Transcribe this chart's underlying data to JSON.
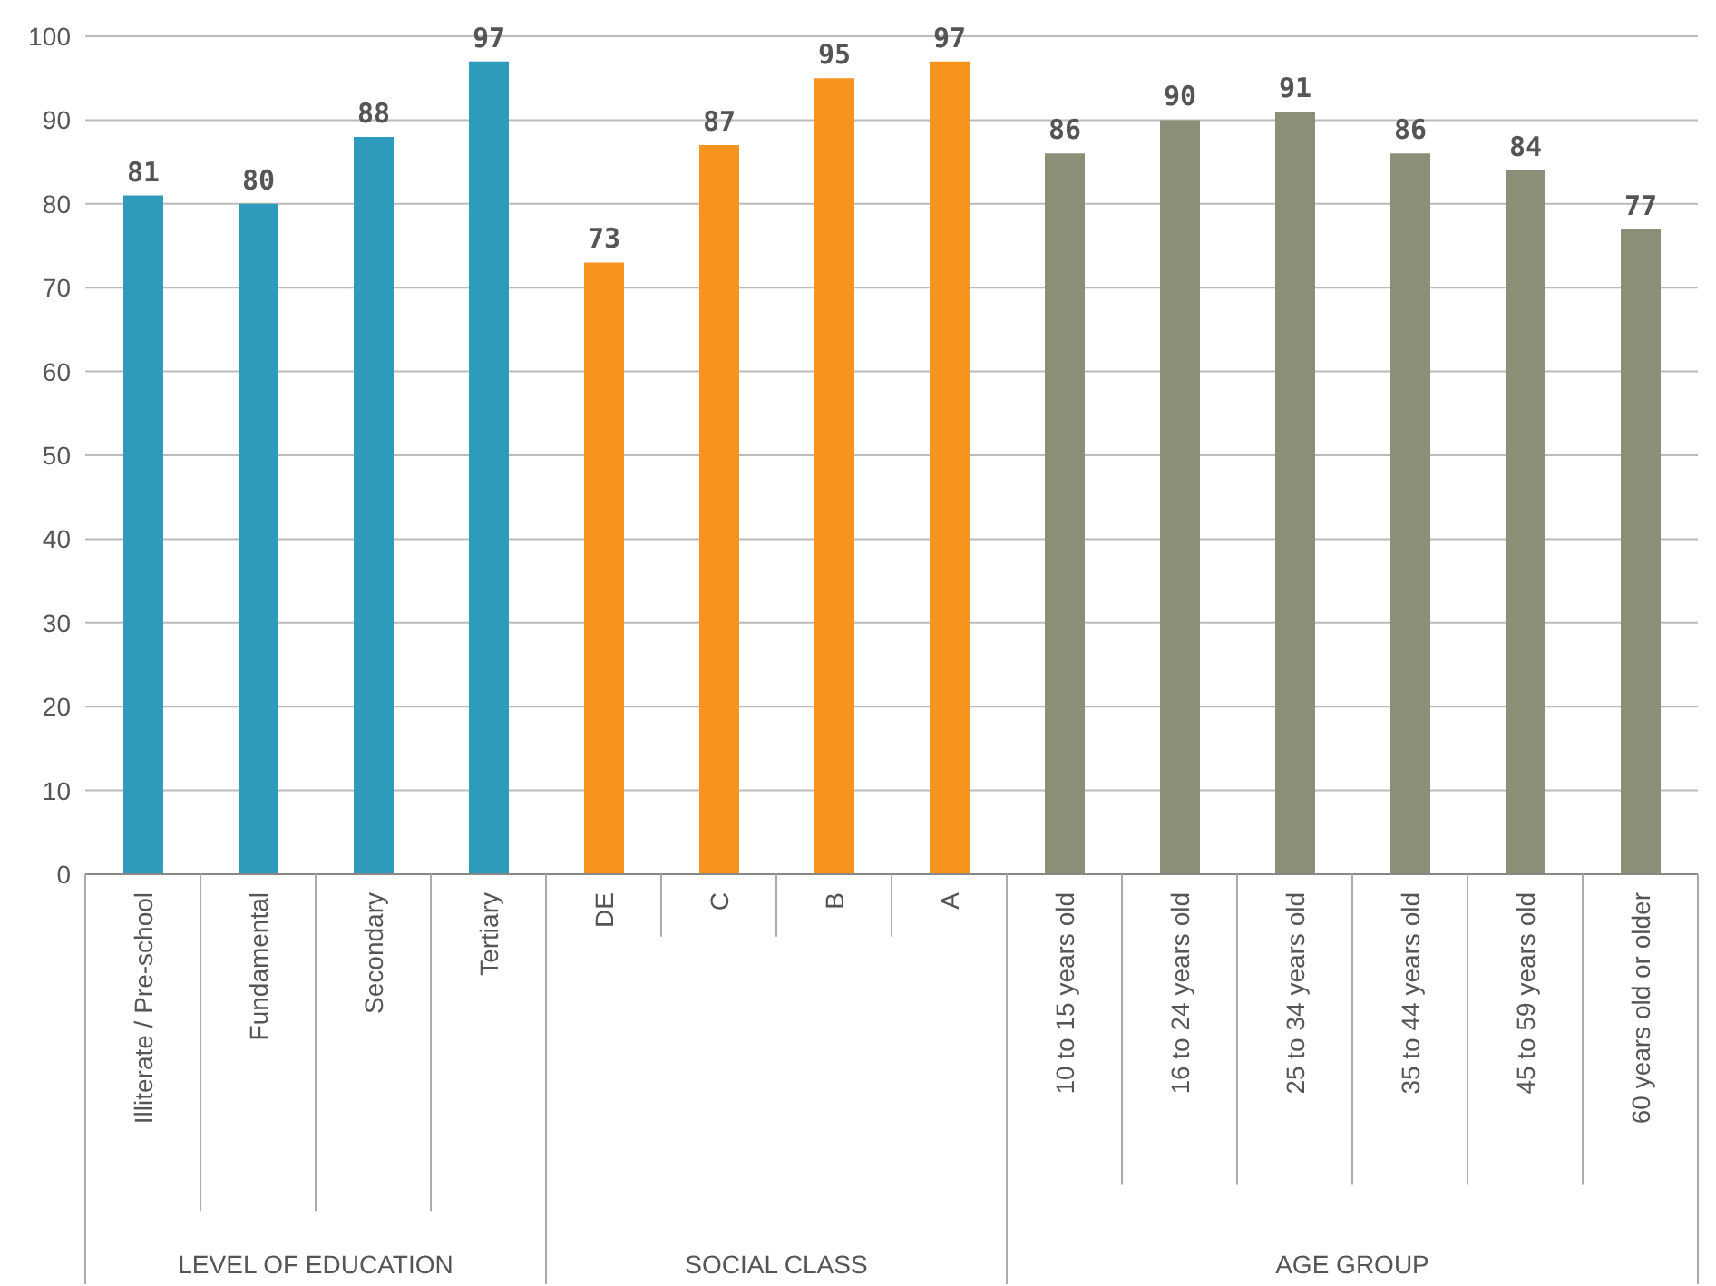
{
  "chart_data": {
    "type": "bar",
    "categories": [
      "Illiterate / Pre-school",
      "Fundamental",
      "Secondary",
      "Tertiary",
      "DE",
      "C",
      "B",
      "A",
      "10 to 15 years old",
      "16 to 24 years old",
      "25 to 34 years old",
      "35 to 44 years old",
      "45 to 59 years old",
      "60 years old or older"
    ],
    "series": [
      {
        "color": "#2e9bbd",
        "values": [
          81,
          80,
          88,
          97,
          null,
          null,
          null,
          null,
          null,
          null,
          null,
          null,
          null,
          null
        ]
      },
      {
        "color": "#f7941d",
        "values": [
          null,
          null,
          null,
          null,
          73,
          87,
          95,
          97,
          null,
          null,
          null,
          null,
          null,
          null
        ]
      },
      {
        "color": "#8a8f78",
        "values": [
          null,
          null,
          null,
          null,
          null,
          null,
          null,
          null,
          86,
          90,
          91,
          86,
          84,
          77
        ]
      }
    ],
    "ylim": [
      0,
      100
    ],
    "yticks": [
      0,
      10,
      20,
      30,
      40,
      50,
      60,
      70,
      80,
      90,
      100
    ],
    "grid": "y",
    "data_labels": true,
    "annotations": [
      "LEVEL OF EDUCATION",
      "SOCIAL CLASS",
      "AGE GROUP"
    ]
  }
}
